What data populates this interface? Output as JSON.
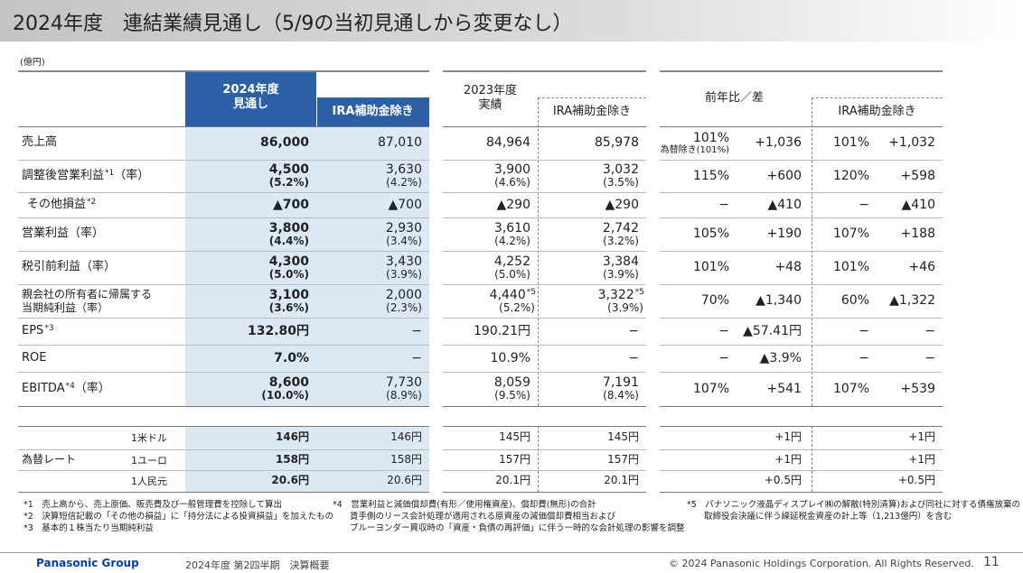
{
  "header": {
    "title": "2024年度　連結業績見通し（5/9の当初見通しから変更なし）"
  },
  "unit": "(億円)",
  "table": {
    "columns": [
      {
        "lines": [
          "2024年度",
          "見通し"
        ]
      },
      {
        "lines": [
          "IRA補助金除き"
        ]
      },
      {
        "lines": [
          "2023年度",
          "実績"
        ]
      },
      {
        "lines": [
          "IRA補助金除き"
        ]
      },
      {
        "lines": [
          "前年比／差"
        ]
      },
      {
        "lines": [
          "IRA補助金除き"
        ]
      }
    ],
    "rows": [
      {
        "label": [
          "売上高"
        ],
        "cells": [
          [
            "86,000"
          ],
          [
            "87,010"
          ],
          [
            "84,964"
          ],
          [
            "85,978"
          ],
          [
            "101%",
            "為替除き(101%)"
          ],
          [
            "+1,036"
          ],
          [
            "101%"
          ],
          [
            "+1,032"
          ]
        ]
      },
      {
        "label": [
          "調整後営業利益"
        ],
        "label_note": "*1",
        "label_suffix": "（率）",
        "cells": [
          [
            "4,500",
            "(5.2%)"
          ],
          [
            "3,630",
            "(4.2%)"
          ],
          [
            "3,900",
            "(4.6%)"
          ],
          [
            "3,032",
            "(3.5%)"
          ],
          [
            "115%"
          ],
          [
            "+600"
          ],
          [
            "120%"
          ],
          [
            "+598"
          ]
        ]
      },
      {
        "label": [
          "その他損益"
        ],
        "label_note": "*2",
        "cells": [
          [
            "▲700"
          ],
          [
            "▲700"
          ],
          [
            "▲290"
          ],
          [
            "▲290"
          ],
          [
            "−"
          ],
          [
            "▲410"
          ],
          [
            "−"
          ],
          [
            "▲410"
          ]
        ]
      },
      {
        "label": [
          "営業利益（率）"
        ],
        "cells": [
          [
            "3,800",
            "(4.4%)"
          ],
          [
            "2,930",
            "(3.4%)"
          ],
          [
            "3,610",
            "(4.2%)"
          ],
          [
            "2,742",
            "(3.2%)"
          ],
          [
            "105%"
          ],
          [
            "+190"
          ],
          [
            "107%"
          ],
          [
            "+188"
          ]
        ]
      },
      {
        "label": [
          "税引前利益（率）"
        ],
        "cells": [
          [
            "4,300",
            "(5.0%)"
          ],
          [
            "3,430",
            "(3.9%)"
          ],
          [
            "4,252",
            "(5.0%)"
          ],
          [
            "3,384",
            "(3.9%)"
          ],
          [
            "101%"
          ],
          [
            "+48"
          ],
          [
            "101%"
          ],
          [
            "+46"
          ]
        ]
      },
      {
        "label": [
          "親会社の所有者に帰属する",
          "当期純利益（率）"
        ],
        "notes": {
          "2": "*5",
          "3": "*5"
        },
        "cells": [
          [
            "3,100",
            "(3.6%)"
          ],
          [
            "2,000",
            "(2.3%)"
          ],
          [
            "4,440",
            "(5.2%)"
          ],
          [
            "3,322",
            "(3.9%)"
          ],
          [
            "70%"
          ],
          [
            "▲1,340"
          ],
          [
            "60%"
          ],
          [
            "▲1,322"
          ]
        ]
      },
      {
        "label": [
          "EPS"
        ],
        "label_note": "*3",
        "cells": [
          [
            "132.80円"
          ],
          [
            "−"
          ],
          [
            "190.21円"
          ],
          [
            "−"
          ],
          [
            "−"
          ],
          [
            "▲57.41円"
          ],
          [
            "−"
          ],
          [
            "−"
          ]
        ]
      },
      {
        "label": [
          "ROE"
        ],
        "cells": [
          [
            "7.0%"
          ],
          [
            "−"
          ],
          [
            "10.9%"
          ],
          [
            "−"
          ],
          [
            "−"
          ],
          [
            "▲3.9%"
          ],
          [
            "−"
          ],
          [
            "−"
          ]
        ]
      },
      {
        "label": [
          "EBITDA"
        ],
        "label_note": "*4",
        "label_suffix": "（率）",
        "cells": [
          [
            "8,600",
            "(10.0%)"
          ],
          [
            "7,730",
            "(8.9%)"
          ],
          [
            "8,059",
            "(9.5%)"
          ],
          [
            "7,191",
            "(8.4%)"
          ],
          [
            "107%"
          ],
          [
            "+541"
          ],
          [
            "107%"
          ],
          [
            "+539"
          ]
        ]
      }
    ],
    "fx": {
      "label": "為替レート",
      "rows": [
        {
          "label": "1米ドル",
          "cells": [
            "146円",
            "146円",
            "145円",
            "145円",
            null,
            "+1円",
            null,
            "+1円"
          ]
        },
        {
          "label": "1ユーロ",
          "cells": [
            "158円",
            "158円",
            "157円",
            "157円",
            null,
            "+1円",
            null,
            "+1円"
          ]
        },
        {
          "label": "1人民元",
          "cells": [
            "20.6円",
            "20.6円",
            "20.1円",
            "20.1円",
            null,
            "+0.5円",
            null,
            "+0.5円"
          ]
        }
      ]
    }
  },
  "footnotes": [
    [
      "*1　売上高から、売上原価、販売費及び一般管理費を控除して算出",
      "*2　決算短信記載の「その他の損益」に「持分法による投資損益」を加えたもの",
      "*3　基本的１株当たり当期純利益"
    ],
    [
      "*4　営業利益と減価償却費(有形／使用権資産)、償却費(無形)の合計",
      "　　賃手側のリース会計処理が適用される原資産の減価償却費相当および",
      "　　ブルーヨンダー買収時の「資産・負債の再評価」に伴う一時的な会計処理の影響を調整"
    ],
    [
      "*5　パナソニック液晶ディスプレイ㈱の解散(特別清算)および同社に対する債権放棄の",
      "　　取締役会決議に伴う繰延税金資産の計上等（1,213億円）を含む"
    ]
  ],
  "footer": {
    "brand": "Panasonic Group",
    "period": "2024年度 第2四半期　決算概要",
    "copyright": "© 2024 Panasonic Holdings Corporation. All Rights Reserved.",
    "page": "11"
  }
}
